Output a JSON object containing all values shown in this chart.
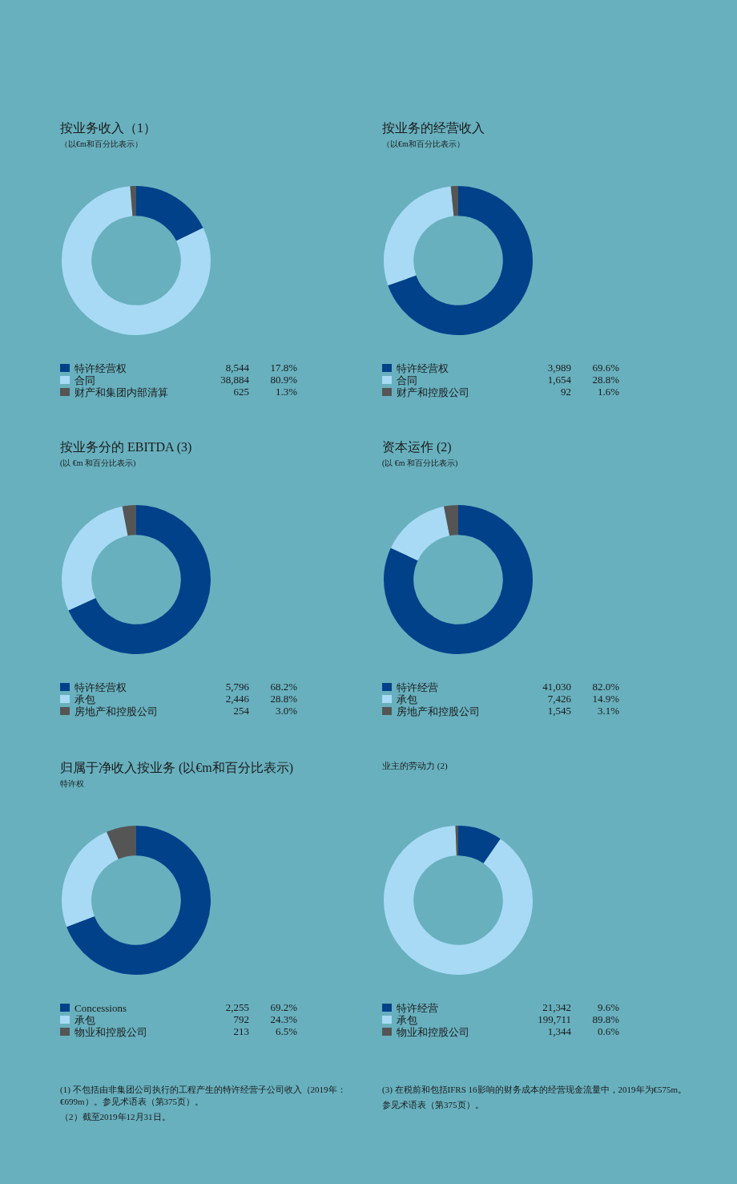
{
  "chart_data": [
    {
      "type": "donut",
      "title": "按业务收入（1）",
      "subtitle": "（以€m和百分比表示）",
      "categories": [
        "特许经营权",
        "合同",
        "财产和集团内部清算"
      ],
      "values": [
        17.8,
        80.9,
        1.3
      ],
      "value_labels": [
        "17.8%",
        "80.9%",
        "1.3%"
      ],
      "colors": [
        "#00418a",
        "#a8daf5",
        "#555555"
      ],
      "legend": "bottom",
      "annotations": [
        {
          "text": "8,544",
          "x": "特许经营权"
        },
        {
          "text": "38,884",
          "x": "合同"
        },
        {
          "text": "625",
          "x": "财产和集团内部清算"
        }
      ]
    },
    {
      "type": "donut",
      "title": "按业务的经营收入",
      "subtitle": "（以€m和百分比表示）",
      "categories": [
        "特许经营权",
        "合同",
        "财产和控股公司"
      ],
      "values": [
        69.6,
        28.8,
        1.6
      ],
      "value_labels": [
        "69.6%",
        "28.8%",
        "1.6%"
      ],
      "colors": [
        "#00418a",
        "#a8daf5",
        "#555555"
      ],
      "legend": "bottom",
      "annotations": [
        {
          "text": "3,989",
          "x": "特许经营权"
        },
        {
          "text": "1,654",
          "x": "合同"
        },
        {
          "text": "92",
          "x": "财产和控股公司"
        }
      ]
    },
    {
      "type": "donut",
      "title": "按业务分的 EBITDA (3)",
      "subtitle": "(以 €m 和百分比表示)",
      "categories": [
        "特许经营权",
        "承包",
        "房地产和控股公司"
      ],
      "values": [
        68.2,
        28.8,
        3.0
      ],
      "value_labels": [
        "68.2%",
        "28.8%",
        "3.0%"
      ],
      "colors": [
        "#00418a",
        "#a8daf5",
        "#555555"
      ],
      "legend": "bottom",
      "annotations": [
        {
          "text": "5,796",
          "x": "特许经营权"
        },
        {
          "text": "2,446",
          "x": "承包"
        },
        {
          "text": "254",
          "x": "房地产和控股公司"
        }
      ]
    },
    {
      "type": "donut",
      "title": "资本运作 (2)",
      "subtitle": "(以 €m 和百分比表示)",
      "categories": [
        "特许经营",
        "承包",
        "房地产和控股公司"
      ],
      "values": [
        82.0,
        14.9,
        3.1
      ],
      "value_labels": [
        "82.0%",
        "14.9%",
        "3.1%"
      ],
      "colors": [
        "#00418a",
        "#a8daf5",
        "#555555"
      ],
      "legend": "bottom",
      "annotations": [
        {
          "text": "41,030",
          "x": "特许经营"
        },
        {
          "text": "7,426",
          "x": "承包"
        },
        {
          "text": "1,545",
          "x": "房地产和控股公司"
        }
      ]
    },
    {
      "type": "donut",
      "title": "归属于净收入按业务 (以€m和百分比表示)",
      "subtitle": "特许权",
      "categories": [
        "Concessions",
        "承包",
        "物业和控股公司"
      ],
      "values": [
        69.2,
        24.3,
        6.5
      ],
      "value_labels": [
        "69.2%",
        "24.3%",
        "6.5%"
      ],
      "colors": [
        "#00418a",
        "#a8daf5",
        "#555555"
      ],
      "legend": "bottom",
      "annotations": [
        {
          "text": "2,255",
          "x": "Concessions"
        },
        {
          "text": "792",
          "x": "承包"
        },
        {
          "text": "213",
          "x": "物业和控股公司"
        },
        "(1) 不包括由非集团公司执行的工程产生的特许经营子公司收入（2019年：€699m）。参见术语表（第375页）。",
        "（2）截至2019年12月31日。"
      ]
    },
    {
      "type": "donut",
      "title": "业主的劳动力 (2)",
      "categories": [
        "特许经营",
        "承包",
        "物业和控股公司"
      ],
      "values": [
        9.6,
        89.8,
        0.6
      ],
      "value_labels": [
        "9.6%",
        "89.8%",
        "0.6%"
      ],
      "colors": [
        "#00418a",
        "#a8daf5",
        "#555555"
      ],
      "legend": "bottom",
      "annotations": [
        {
          "text": "21,342",
          "x": "特许经营"
        },
        {
          "text": "199,711",
          "x": "承包"
        },
        {
          "text": "1,344",
          "x": "物业和控股公司"
        },
        "(3) 在税前和包括IFRS 16影响的财务成本的经营现金流量中，2019年为€575m。",
        "参见术语表（第375页）。"
      ]
    }
  ]
}
